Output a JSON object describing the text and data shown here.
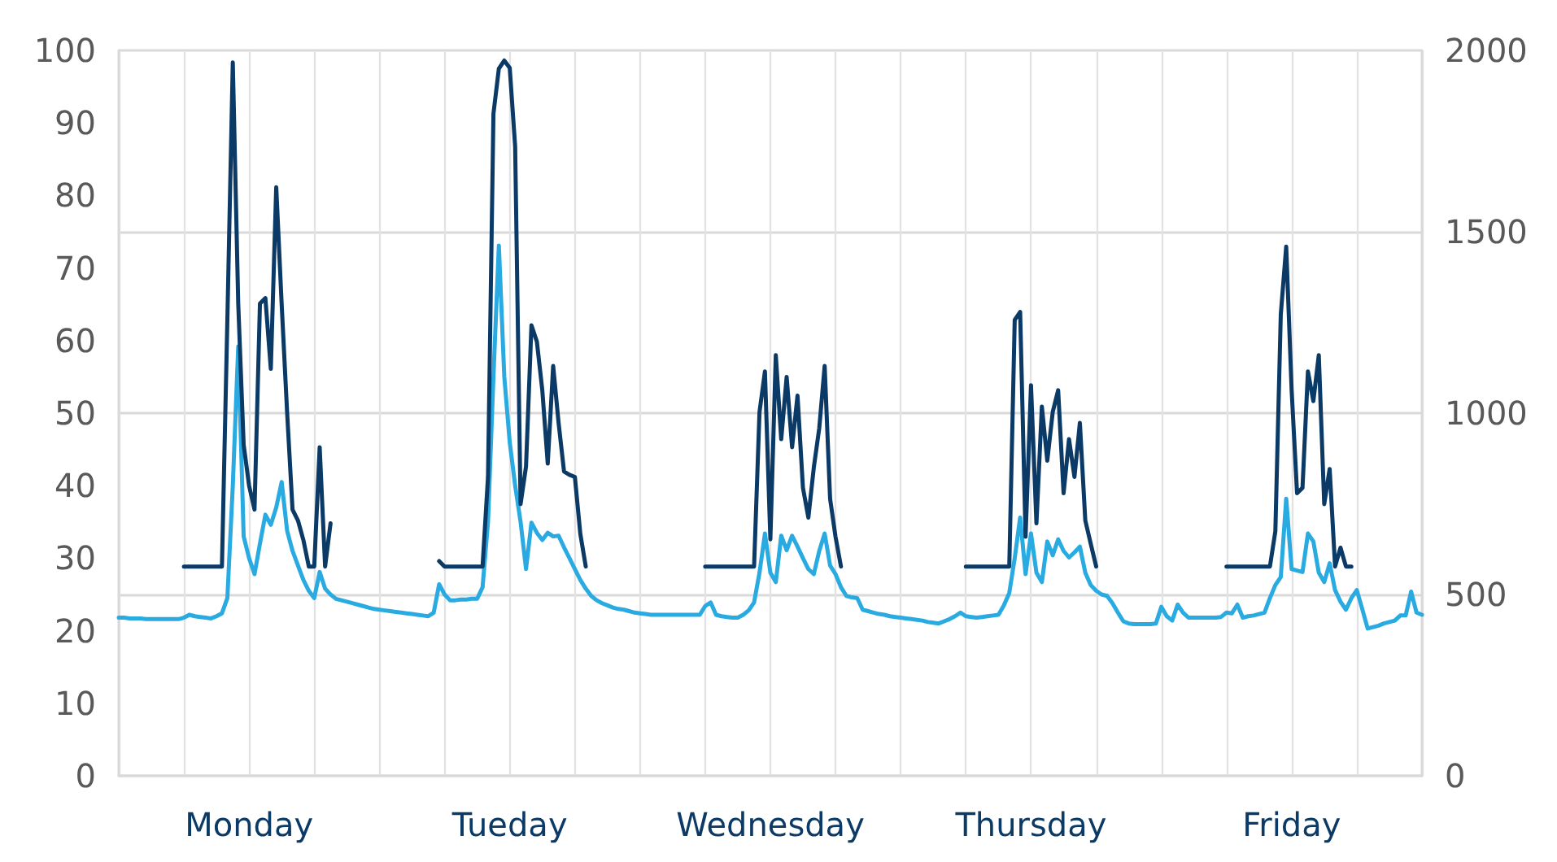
{
  "chart_data": {
    "type": "line",
    "categories": [
      null,
      null,
      null,
      null,
      null,
      null,
      null,
      null,
      null,
      null,
      null,
      null,
      null,
      null,
      null,
      null,
      null,
      null,
      null,
      null,
      null,
      null,
      null,
      null,
      "Monday",
      null,
      null,
      null,
      null,
      null,
      null,
      null,
      null,
      null,
      null,
      null,
      null,
      null,
      null,
      null,
      null,
      null,
      null,
      null,
      null,
      null,
      null,
      null,
      null,
      null,
      null,
      null,
      null,
      null,
      null,
      null,
      null,
      null,
      null,
      null,
      null,
      null,
      null,
      null,
      null,
      null,
      null,
      null,
      null,
      null,
      null,
      null,
      "Tueday",
      null,
      null,
      null,
      null,
      null,
      null,
      null,
      null,
      null,
      null,
      null,
      null,
      null,
      null,
      null,
      null,
      null,
      null,
      null,
      null,
      null,
      null,
      null,
      null,
      null,
      null,
      null,
      null,
      null,
      null,
      null,
      null,
      null,
      null,
      null,
      null,
      null,
      null,
      null,
      null,
      null,
      null,
      null,
      null,
      null,
      null,
      null,
      "Wednesday",
      null,
      null,
      null,
      null,
      null,
      null,
      null,
      null,
      null,
      null,
      null,
      null,
      null,
      null,
      null,
      null,
      null,
      null,
      null,
      null,
      null,
      null,
      null,
      null,
      null,
      null,
      null,
      null,
      null,
      null,
      null,
      null,
      null,
      null,
      null,
      null,
      null,
      null,
      null,
      null,
      null,
      null,
      null,
      null,
      null,
      null,
      null,
      "Thursday",
      null,
      null,
      null,
      null,
      null,
      null,
      null,
      null,
      null,
      null,
      null,
      null,
      null,
      null,
      null,
      null,
      null,
      null,
      null,
      null,
      null,
      null,
      null,
      null,
      null,
      null,
      null,
      null,
      null,
      null,
      null,
      null,
      null,
      null,
      null,
      null,
      null,
      null,
      null,
      null,
      null,
      null,
      null,
      null,
      null,
      null,
      null,
      "Friday",
      null,
      null,
      null,
      null,
      null,
      null,
      null,
      null,
      null,
      null,
      null,
      null,
      null,
      null,
      null,
      null,
      null,
      null,
      null,
      null,
      null,
      null,
      null,
      null
    ],
    "ylim": [
      0,
      100
    ],
    "yticks": [
      0,
      10,
      20,
      30,
      40,
      50,
      60,
      70,
      80,
      90,
      100
    ],
    "y2lim": [
      0,
      2000
    ],
    "y2ticks": [
      0,
      500,
      1000,
      1500,
      2000
    ],
    "grid": true,
    "marker": "none",
    "line_style": "solid",
    "series": [
      {
        "color": "#29abe2",
        "axis": "y",
        "values": [
          21.8,
          21.8,
          21.7,
          21.7,
          21.7,
          21.6,
          21.6,
          21.6,
          21.6,
          21.6,
          21.6,
          21.6,
          21.8,
          22.2,
          22.0,
          21.9,
          21.8,
          21.7,
          22.0,
          22.4,
          24.5,
          40,
          59.2,
          33.0,
          30.0,
          27.8,
          32,
          36.0,
          34.6,
          37,
          40.5,
          33.8,
          31,
          29,
          27.0,
          25.5,
          24.5,
          28.1,
          25.8,
          25.0,
          24.4,
          24.2,
          24.0,
          23.8,
          23.6,
          23.4,
          23.2,
          23.0,
          22.9,
          22.8,
          22.7,
          22.6,
          22.5,
          22.4,
          22.3,
          22.2,
          22.1,
          22.0,
          22.5,
          26.4,
          25,
          24.2,
          24.2,
          24.3,
          24.3,
          24.4,
          24.4,
          26,
          35,
          55,
          73.1,
          55,
          46,
          40,
          35,
          28.5,
          34.9,
          33.5,
          32.5,
          33.5,
          33.0,
          33.1,
          31.5,
          30,
          28.5,
          27,
          25.8,
          24.8,
          24.2,
          23.8,
          23.5,
          23.2,
          23.0,
          22.9,
          22.7,
          22.5,
          22.4,
          22.3,
          22.2,
          22.2,
          22.2,
          22.2,
          22.2,
          22.2,
          22.2,
          22.2,
          22.2,
          22.2,
          23.4,
          23.9,
          22.2,
          22.0,
          21.9,
          21.8,
          21.8,
          22.2,
          22.8,
          23.9,
          28,
          33.4,
          28,
          26.7,
          33.1,
          31.1,
          33.1,
          31.6,
          30,
          28.5,
          27.8,
          31,
          33.4,
          29,
          27.8,
          26,
          24.8,
          24.6,
          24.5,
          22.9,
          22.7,
          22.5,
          22.3,
          22.2,
          22.0,
          21.9,
          21.8,
          21.7,
          21.6,
          21.5,
          21.4,
          21.2,
          21.1,
          21.0,
          21.3,
          21.6,
          22.0,
          22.5,
          22.0,
          21.9,
          21.8,
          21.9,
          22.0,
          22.1,
          22.2,
          23.5,
          25.2,
          30,
          35.6,
          27.8,
          33.4,
          28,
          26.7,
          32.3,
          30.4,
          32.6,
          31,
          30.1,
          30.8,
          31.6,
          28,
          26.3,
          25.5,
          25,
          24.8,
          23.8,
          22.5,
          21.3,
          21.0,
          20.9,
          20.9,
          20.9,
          20.9,
          21.0,
          23.3,
          22.0,
          21.4,
          23.6,
          22.5,
          21.8,
          21.8,
          21.8,
          21.8,
          21.8,
          21.8,
          21.9,
          22.5,
          22.4,
          23.6,
          21.8,
          22.0,
          22.1,
          22.3,
          22.5,
          24.5,
          26.3,
          27.4,
          38.2,
          28.5,
          28.3,
          28.1,
          33.4,
          32.3,
          28,
          26.7,
          29.3,
          25.6,
          24,
          22.9,
          24.5,
          25.6,
          23,
          20.3,
          20.5,
          20.7,
          21.0,
          21.2,
          21.4,
          22.1,
          22.1,
          25.4,
          22.5,
          22.2
        ]
      },
      {
        "color": "#0b3a66",
        "axis": "y2",
        "values": [
          null,
          null,
          null,
          null,
          null,
          null,
          null,
          null,
          null,
          null,
          null,
          null,
          577,
          577,
          577,
          577,
          577,
          577,
          577,
          577,
          1257,
          1967,
          1302,
          913,
          800,
          734,
          1302,
          1317,
          1122,
          1623,
          1300,
          1003,
          734,
          704,
          650,
          577,
          577,
          906,
          577,
          696,
          null,
          null,
          null,
          null,
          null,
          null,
          null,
          null,
          null,
          null,
          null,
          null,
          null,
          null,
          null,
          null,
          null,
          null,
          null,
          592,
          577,
          577,
          577,
          577,
          577,
          577,
          577,
          577,
          824,
          1825,
          1950,
          1972,
          1952,
          1735,
          749,
          853,
          1242,
          1197,
          1063,
          861,
          1130,
          973,
          839,
          830,
          824,
          667,
          577,
          null,
          null,
          null,
          null,
          null,
          null,
          null,
          null,
          null,
          null,
          null,
          null,
          null,
          null,
          null,
          null,
          null,
          null,
          null,
          null,
          null,
          577,
          577,
          577,
          577,
          577,
          577,
          577,
          577,
          577,
          577,
          1003,
          1115,
          652,
          1160,
          928,
          1100,
          906,
          1048,
          794,
          712,
          850,
          958,
          1130,
          764,
          659,
          577,
          null,
          null,
          null,
          null,
          null,
          null,
          null,
          null,
          null,
          null,
          null,
          null,
          null,
          null,
          null,
          null,
          null,
          null,
          null,
          null,
          null,
          null,
          577,
          577,
          577,
          577,
          577,
          577,
          577,
          577,
          577,
          1257,
          1279,
          659,
          1077,
          696,
          1018,
          869,
          1003,
          1063,
          779,
          928,
          824,
          973,
          704,
          640,
          577,
          null,
          null,
          null,
          null,
          null,
          null,
          null,
          null,
          null,
          null,
          null,
          null,
          null,
          null,
          null,
          null,
          null,
          null,
          null,
          null,
          null,
          null,
          null,
          577,
          577,
          577,
          577,
          577,
          577,
          577,
          577,
          577,
          674,
          1272,
          1459,
          1063,
          779,
          794,
          1115,
          1033,
          1160,
          749,
          846,
          577,
          629,
          577,
          577,
          null,
          null,
          null,
          null,
          null,
          null,
          null,
          null,
          null,
          null,
          null,
          null,
          null
        ]
      }
    ]
  }
}
